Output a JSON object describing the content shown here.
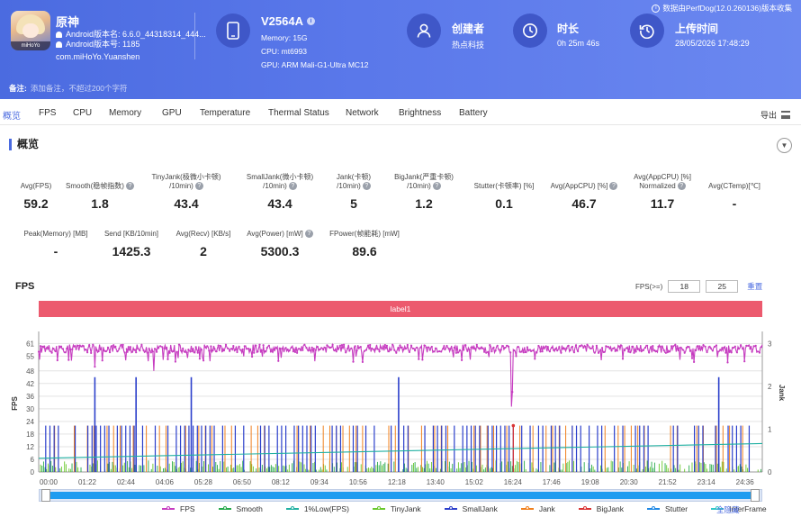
{
  "header": {
    "app_name": "原神",
    "android_version_name": "Android版本名: 6.6.0_44318314_444...",
    "android_version_code": "Android版本号: 1185",
    "package": "com.miHoYo.Yuanshen",
    "app_icon_tag": "miHoYo",
    "device_name": "V2564A",
    "device_memory": "Memory: 15G",
    "device_cpu": "CPU: mt6993",
    "device_gpu": "GPU: ARM Mali-G1-Ultra MC12",
    "creator_label": "创建者",
    "creator_value": "热点科技",
    "duration_label": "时长",
    "duration_value": "0h 25m 46s",
    "upload_label": "上传时间",
    "upload_value": "28/05/2026 17:48:29",
    "export_note": "数据由PerfDog(12.0.260136)版本收集",
    "note_label": "备注:",
    "note_placeholder": "添加备注，不超过200个字符"
  },
  "tabs": [
    {
      "label": "概览",
      "active": true
    },
    {
      "label": "FPS",
      "active": false
    },
    {
      "label": "CPU",
      "active": false
    },
    {
      "label": "Memory",
      "active": false
    },
    {
      "label": "GPU",
      "active": false
    },
    {
      "label": "Temperature",
      "active": false
    },
    {
      "label": "Thermal Status",
      "active": false
    },
    {
      "label": "Network",
      "active": false
    },
    {
      "label": "Brightness",
      "active": false
    },
    {
      "label": "Battery",
      "active": false
    }
  ],
  "export_label": "导出",
  "overview": {
    "title": "概览",
    "metrics": [
      {
        "label": "Avg(FPS)",
        "value": "59.2",
        "help": false
      },
      {
        "label": "Smooth(稳帧指数)",
        "value": "1.8",
        "help": true
      },
      {
        "label": "TinyJank(极微小卡顿)\n/10min)",
        "value": "43.4",
        "help": true
      },
      {
        "label": "SmallJank(微小卡顿)\n/10min)",
        "value": "43.4",
        "help": true
      },
      {
        "label": "Jank(卡顿)\n/10min)",
        "value": "5",
        "help": true
      },
      {
        "label": "BigJank(严重卡顿)\n/10min)",
        "value": "1.2",
        "help": true
      },
      {
        "label": "Stutter(卡顿率) [%]",
        "value": "0.1",
        "help": false
      },
      {
        "label": "Avg(AppCPU) [%]",
        "value": "46.7",
        "help": true
      },
      {
        "label": "Avg(AppCPU) [%]\nNormalized",
        "value": "11.7",
        "help": true
      },
      {
        "label": "Avg(CTemp)[℃]",
        "value": "-",
        "help": false
      },
      {
        "label": "Peak(Memory) [MB]",
        "value": "-",
        "help": false
      },
      {
        "label": "Send [KB/10min]",
        "value": "1425.3",
        "help": false
      },
      {
        "label": "Avg(Recv) [KB/s]",
        "value": "2",
        "help": false
      },
      {
        "label": "Avg(Power) [mW]",
        "value": "5300.3",
        "help": true
      },
      {
        "label": "FPower(帧能耗) [mW]",
        "value": "89.6",
        "help": false
      }
    ]
  },
  "chart_section": {
    "title": "FPS",
    "threshold_label": "FPS(>=)",
    "threshold_1": "18",
    "threshold_2": "25",
    "reset_label": "重置",
    "label_bar": "label1",
    "hide_all_label": "全隐藏"
  },
  "chart_data": {
    "type": "line",
    "title": "",
    "ylabel": "FPS",
    "y2label": "Jank",
    "ylim": [
      0,
      65
    ],
    "y2lim": [
      0,
      3.2
    ],
    "yticks": [
      0,
      6,
      12,
      18,
      24,
      30,
      36,
      42,
      48,
      55,
      61
    ],
    "y2ticks": [
      0,
      1,
      2,
      3
    ],
    "xticks": [
      "00:00",
      "01:22",
      "02:44",
      "04:06",
      "05:28",
      "06:50",
      "08:12",
      "09:34",
      "10:56",
      "12:18",
      "13:40",
      "15:02",
      "16:24",
      "17:46",
      "19:08",
      "20:30",
      "21:52",
      "23:14",
      "24:36"
    ],
    "duration_seconds": 1546,
    "series": [
      {
        "name": "FPS",
        "color": "#c63cc0",
        "typical": 58.5,
        "range": [
          55,
          61
        ],
        "dips": [
          [
            1010,
            31
          ],
          [
            1011,
            38
          ],
          [
            1020,
            55
          ],
          [
            245,
            48
          ],
          [
            120,
            50
          ]
        ]
      },
      {
        "name": "Smooth",
        "color": "#27a94b"
      },
      {
        "name": "1%Low(FPS)",
        "color": "#20b0a2",
        "start": 6.5,
        "end": 13.5
      },
      {
        "name": "TinyJank",
        "color": "#6ac82c"
      },
      {
        "name": "SmallJank",
        "color": "#2b3fcb",
        "tall_spikes": [
          [
            120,
            45
          ],
          [
            208,
            45
          ],
          [
            326,
            45
          ],
          [
            769,
            45
          ],
          [
            1453,
            45
          ]
        ]
      },
      {
        "name": "Jank",
        "color": "#f0801e"
      },
      {
        "name": "BigJank",
        "color": "#d93434",
        "events": [
          1014
        ]
      },
      {
        "name": "Stutter",
        "color": "#1e88e5"
      },
      {
        "name": "InterFrame",
        "color": "#33c8c8"
      }
    ],
    "legend_position": "bottom",
    "grid": true
  }
}
